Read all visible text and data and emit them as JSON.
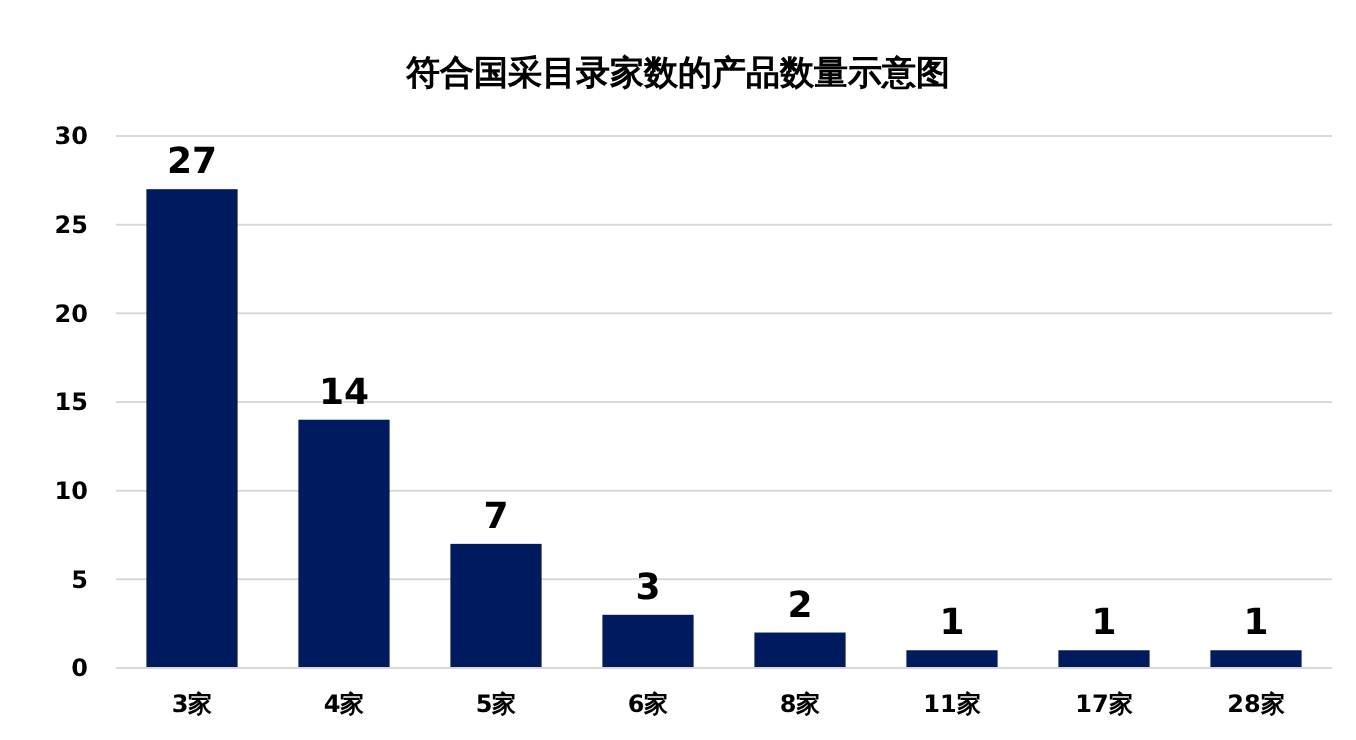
{
  "chart_data": {
    "type": "bar",
    "title": "符合国采目录家数的产品数量示意图",
    "categories": [
      "3家",
      "4家",
      "5家",
      "6家",
      "8家",
      "11家",
      "17家",
      "28家"
    ],
    "values": [
      27,
      14,
      7,
      3,
      2,
      1,
      1,
      1
    ],
    "color": "#001a5e",
    "ylim": [
      0,
      30
    ],
    "yticks": [
      0,
      5,
      10,
      15,
      20,
      25,
      30
    ],
    "grid": "y",
    "data_labels": true
  }
}
